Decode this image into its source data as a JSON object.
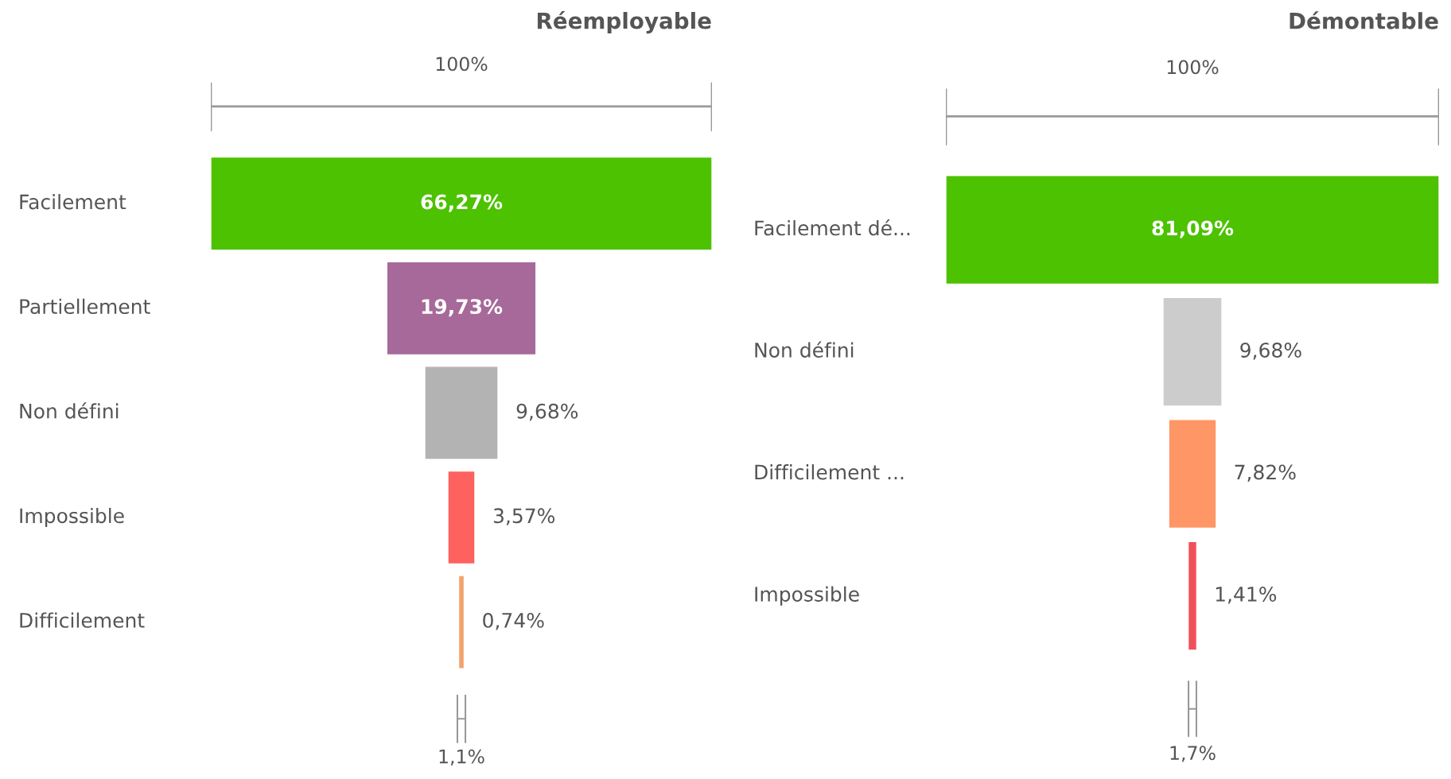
{
  "chart_data": [
    {
      "type": "other",
      "title": "Réemployable",
      "categories": [
        "Facilement",
        "Partiellement",
        "Non défini",
        "Impossible",
        "Difficilement"
      ],
      "values": [
        66.27,
        19.73,
        9.68,
        3.57,
        0.74
      ],
      "colors": [
        "#4cc200",
        "#a66999",
        "#b3b3b3",
        "#fd625e",
        "#f2a36b"
      ],
      "value_labels": [
        "66,27%",
        "19,73%",
        "9,68%",
        "3,57%",
        "0,74%"
      ],
      "annotations": [
        "100%",
        "1,1%"
      ]
    },
    {
      "type": "other",
      "title": "Démontable",
      "categories": [
        "Facilement dé...",
        "Non défini",
        "Difficilement ...",
        "Impossible"
      ],
      "values": [
        81.09,
        9.68,
        7.82,
        1.41
      ],
      "colors": [
        "#4cc200",
        "#cccccc",
        "#fe9666",
        "#f0505a"
      ],
      "value_labels": [
        "81,09%",
        "9,68%",
        "7,82%",
        "1,41%"
      ],
      "annotations": [
        "100%",
        "1,7%"
      ]
    }
  ]
}
